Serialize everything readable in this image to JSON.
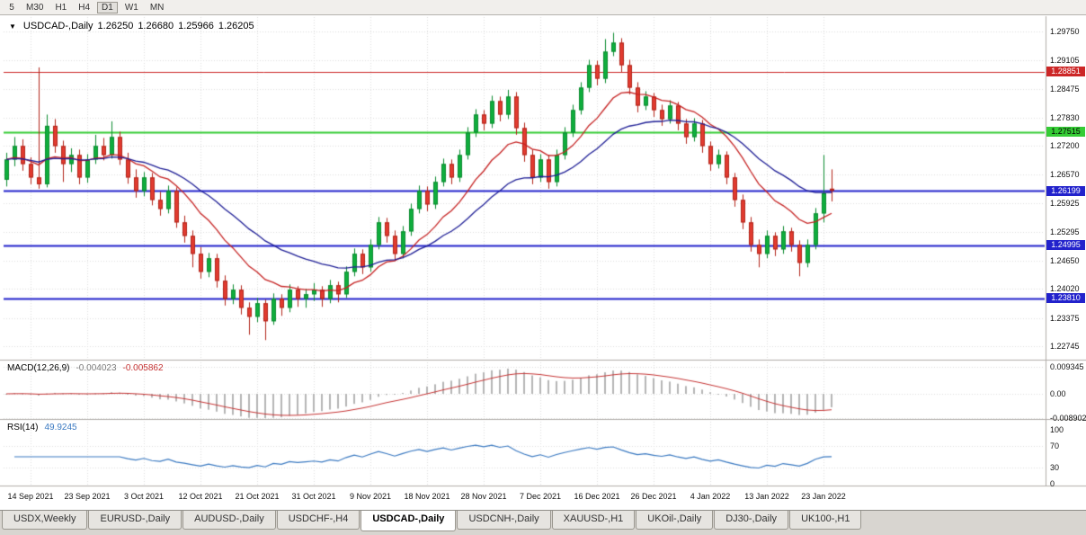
{
  "toolbar": {
    "timeframes": [
      "5",
      "M30",
      "H1",
      "H4",
      "D1",
      "W1",
      "MN"
    ],
    "active": "D1"
  },
  "chart": {
    "title": {
      "symbol": "USDCAD-,Daily",
      "open": "1.26250",
      "high": "1.26680",
      "low": "1.25966",
      "close": "1.26205"
    },
    "price_axis": {
      "ticks": [
        "1.29750",
        "1.29105",
        "1.28475",
        "1.27830",
        "1.27200",
        "1.26570",
        "1.25925",
        "1.25295",
        "1.24650",
        "1.24020",
        "1.23375",
        "1.22745"
      ]
    },
    "date_axis": {
      "labels": [
        "14 Sep 2021",
        "23 Sep 2021",
        "3 Oct 2021",
        "12 Oct 2021",
        "21 Oct 2021",
        "31 Oct 2021",
        "9 Nov 2021",
        "18 Nov 2021",
        "28 Nov 2021",
        "7 Dec 2021",
        "16 Dec 2021",
        "26 Dec 2021",
        "4 Jan 2022",
        "13 Jan 2022",
        "23 Jan 2022"
      ],
      "bar_index": [
        3,
        10,
        17,
        24,
        31,
        38,
        45,
        52,
        59,
        66,
        73,
        80,
        87,
        94,
        101
      ]
    }
  },
  "chart_data": {
    "type": "candlestick",
    "symbol": "USDCAD",
    "timeframe": "Daily",
    "price_range": {
      "axis_top": 1.2975,
      "axis_bottom": 1.22745
    },
    "grid_color": "#dedede",
    "candle_style": {
      "up": "#0fae3d",
      "up_border": "#0a8a2e",
      "down": "#e23b30",
      "down_border": "#b02318"
    },
    "moving_averages": [
      {
        "type": "EMA",
        "period": 12,
        "color": "#c52222"
      },
      {
        "type": "EMA",
        "period": 26,
        "color": "#1f1f96"
      }
    ],
    "hlines": [
      {
        "price": 1.28851,
        "label": "1.28851",
        "color": "#cc2626",
        "text_color": "#ffffff",
        "width": 1
      },
      {
        "price": 1.27515,
        "label": "1.27515",
        "color": "#35cc35",
        "text_color": "#000000",
        "width": 2
      },
      {
        "price": 1.26199,
        "label": "1.26199",
        "color": "#2222cc",
        "text_color": "#ffffff",
        "width": 2
      },
      {
        "price": 1.24995,
        "label": "1.24995",
        "color": "#2222cc",
        "text_color": "#ffffff",
        "width": 2
      },
      {
        "price": 1.2381,
        "label": "1.23810",
        "color": "#2222cc",
        "text_color": "#ffffff",
        "width": 2
      }
    ],
    "indicators": [
      {
        "name": "MACD",
        "label": "MACD(12,26,9)",
        "values": [
          "-0.004023",
          "-0.005862"
        ],
        "scale": [
          "0.009345",
          "0.00",
          "-0.008902"
        ],
        "histogram_color": "#b5b5b5",
        "signal_color": "#c53333"
      },
      {
        "name": "RSI",
        "label": "RSI(14)",
        "value": "49.9245",
        "scale": [
          "100",
          "70",
          "30",
          "0"
        ],
        "levels": [
          70,
          30
        ],
        "line_color": "#3a79c1"
      }
    ],
    "candles": [
      [
        1.2645,
        1.2705,
        1.263,
        1.269
      ],
      [
        1.269,
        1.274,
        1.2675,
        1.272
      ],
      [
        1.272,
        1.2735,
        1.2665,
        1.268
      ],
      [
        1.268,
        1.2695,
        1.2635,
        1.265
      ],
      [
        1.265,
        1.2895,
        1.2625,
        1.2635
      ],
      [
        1.2635,
        1.279,
        1.2628,
        1.2765
      ],
      [
        1.2765,
        1.278,
        1.2705,
        1.272
      ],
      [
        1.272,
        1.2732,
        1.264,
        1.268
      ],
      [
        1.268,
        1.2715,
        1.2662,
        1.27
      ],
      [
        1.27,
        1.2712,
        1.2635,
        1.265
      ],
      [
        1.265,
        1.2702,
        1.2638,
        1.269
      ],
      [
        1.269,
        1.2745,
        1.268,
        1.272
      ],
      [
        1.272,
        1.2738,
        1.2688,
        1.27
      ],
      [
        1.27,
        1.2775,
        1.2692,
        1.274
      ],
      [
        1.274,
        1.2752,
        1.2678,
        1.269
      ],
      [
        1.269,
        1.2705,
        1.2636,
        1.265
      ],
      [
        1.265,
        1.2668,
        1.2605,
        1.262
      ],
      [
        1.262,
        1.2662,
        1.2608,
        1.265
      ],
      [
        1.265,
        1.266,
        1.2588,
        1.26
      ],
      [
        1.26,
        1.2618,
        1.2565,
        1.258
      ],
      [
        1.258,
        1.2632,
        1.257,
        1.262
      ],
      [
        1.262,
        1.2628,
        1.2538,
        1.255
      ],
      [
        1.255,
        1.2565,
        1.2505,
        1.252
      ],
      [
        1.252,
        1.2532,
        1.245,
        1.248
      ],
      [
        1.248,
        1.2495,
        1.2425,
        1.244
      ],
      [
        1.244,
        1.2482,
        1.2428,
        1.247
      ],
      [
        1.247,
        1.248,
        1.2405,
        1.242
      ],
      [
        1.242,
        1.2432,
        1.2365,
        1.238
      ],
      [
        1.238,
        1.2412,
        1.2368,
        1.24
      ],
      [
        1.24,
        1.241,
        1.2345,
        1.236
      ],
      [
        1.236,
        1.2372,
        1.23,
        1.234
      ],
      [
        1.234,
        1.2382,
        1.2328,
        1.237
      ],
      [
        1.237,
        1.2378,
        1.2288,
        1.233
      ],
      [
        1.233,
        1.2392,
        1.2322,
        1.238
      ],
      [
        1.238,
        1.239,
        1.2342,
        1.236
      ],
      [
        1.236,
        1.2412,
        1.235,
        1.24
      ],
      [
        1.24,
        1.2408,
        1.2362,
        1.238
      ],
      [
        1.238,
        1.2402,
        1.236,
        1.239
      ],
      [
        1.239,
        1.2415,
        1.2375,
        1.24
      ],
      [
        1.24,
        1.2408,
        1.2362,
        1.238
      ],
      [
        1.238,
        1.2422,
        1.237,
        1.241
      ],
      [
        1.241,
        1.2418,
        1.2372,
        1.239
      ],
      [
        1.239,
        1.2452,
        1.2382,
        1.244
      ],
      [
        1.244,
        1.2492,
        1.243,
        1.248
      ],
      [
        1.248,
        1.249,
        1.2435,
        1.245
      ],
      [
        1.245,
        1.2512,
        1.244,
        1.25
      ],
      [
        1.25,
        1.2562,
        1.249,
        1.255
      ],
      [
        1.255,
        1.256,
        1.2505,
        1.252
      ],
      [
        1.252,
        1.2532,
        1.2465,
        1.248
      ],
      [
        1.248,
        1.2542,
        1.247,
        1.253
      ],
      [
        1.253,
        1.2592,
        1.252,
        1.258
      ],
      [
        1.258,
        1.2632,
        1.257,
        1.262
      ],
      [
        1.262,
        1.263,
        1.2575,
        1.259
      ],
      [
        1.259,
        1.2652,
        1.258,
        1.264
      ],
      [
        1.264,
        1.2692,
        1.263,
        1.268
      ],
      [
        1.268,
        1.269,
        1.2635,
        1.265
      ],
      [
        1.265,
        1.2712,
        1.264,
        1.27
      ],
      [
        1.27,
        1.2762,
        1.269,
        1.275
      ],
      [
        1.275,
        1.2802,
        1.274,
        1.279
      ],
      [
        1.279,
        1.28,
        1.2755,
        1.277
      ],
      [
        1.277,
        1.2832,
        1.276,
        1.282
      ],
      [
        1.282,
        1.283,
        1.2775,
        1.279
      ],
      [
        1.279,
        1.2845,
        1.278,
        1.283
      ],
      [
        1.283,
        1.284,
        1.2745,
        1.276
      ],
      [
        1.276,
        1.2772,
        1.2685,
        1.27
      ],
      [
        1.27,
        1.2712,
        1.2635,
        1.265
      ],
      [
        1.265,
        1.2702,
        1.264,
        1.269
      ],
      [
        1.269,
        1.27,
        1.2625,
        1.264
      ],
      [
        1.264,
        1.2712,
        1.263,
        1.27
      ],
      [
        1.27,
        1.2762,
        1.269,
        1.275
      ],
      [
        1.275,
        1.2812,
        1.274,
        1.28
      ],
      [
        1.28,
        1.2862,
        1.279,
        1.285
      ],
      [
        1.285,
        1.2912,
        1.284,
        1.29
      ],
      [
        1.29,
        1.291,
        1.2855,
        1.287
      ],
      [
        1.287,
        1.2958,
        1.286,
        1.293
      ],
      [
        1.293,
        1.2972,
        1.292,
        1.295
      ],
      [
        1.295,
        1.296,
        1.2885,
        1.29
      ],
      [
        1.29,
        1.2912,
        1.2835,
        1.285
      ],
      [
        1.285,
        1.2862,
        1.2795,
        1.281
      ],
      [
        1.281,
        1.2842,
        1.28,
        1.283
      ],
      [
        1.283,
        1.2838,
        1.2785,
        1.28
      ],
      [
        1.28,
        1.2812,
        1.2765,
        1.278
      ],
      [
        1.278,
        1.2822,
        1.277,
        1.281
      ],
      [
        1.281,
        1.2818,
        1.2755,
        1.277
      ],
      [
        1.277,
        1.278,
        1.2725,
        1.274
      ],
      [
        1.274,
        1.2782,
        1.273,
        1.277
      ],
      [
        1.277,
        1.2778,
        1.2705,
        1.272
      ],
      [
        1.272,
        1.273,
        1.2665,
        1.268
      ],
      [
        1.268,
        1.2712,
        1.267,
        1.27
      ],
      [
        1.27,
        1.2708,
        1.2635,
        1.265
      ],
      [
        1.265,
        1.266,
        1.2585,
        1.26
      ],
      [
        1.26,
        1.2612,
        1.2535,
        1.255
      ],
      [
        1.255,
        1.2562,
        1.2485,
        1.25
      ],
      [
        1.25,
        1.2512,
        1.245,
        1.248
      ],
      [
        1.248,
        1.2532,
        1.247,
        1.252
      ],
      [
        1.252,
        1.2528,
        1.2475,
        1.249
      ],
      [
        1.249,
        1.2542,
        1.248,
        1.253
      ],
      [
        1.253,
        1.2538,
        1.2485,
        1.25
      ],
      [
        1.25,
        1.251,
        1.243,
        1.246
      ],
      [
        1.246,
        1.2512,
        1.245,
        1.25
      ],
      [
        1.25,
        1.2582,
        1.249,
        1.257
      ],
      [
        1.257,
        1.27,
        1.255,
        1.2615
      ],
      [
        1.2625,
        1.2668,
        1.25966,
        1.26205
      ]
    ]
  },
  "tabs": {
    "items": [
      "USDX,Weekly",
      "EURUSD-,Daily",
      "AUDUSD-,Daily",
      "USDCHF-,H4",
      "USDCAD-,Daily",
      "USDCNH-,Daily",
      "XAUUSD-,H1",
      "UKOil-,Daily",
      "DJ30-,Daily",
      "UK100-,H1"
    ],
    "active": "USDCAD-,Daily"
  }
}
